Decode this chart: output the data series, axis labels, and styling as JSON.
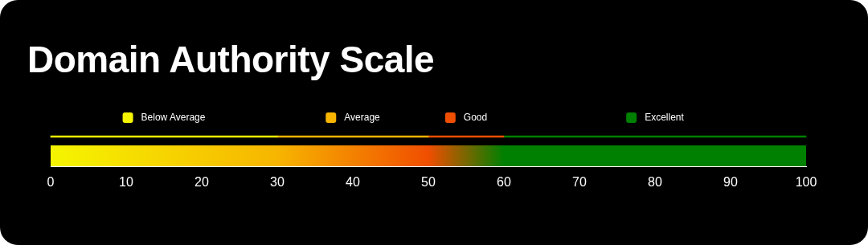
{
  "chart_data": {
    "type": "bar",
    "title": "Domain Authority Scale",
    "orientation": "horizontal",
    "stacked": true,
    "legend": "top",
    "categories": [
      null
    ],
    "series": [
      {
        "name": "Below Average",
        "color": "#f5f500",
        "values": [
          30
        ]
      },
      {
        "name": "Average",
        "color": "#f7b500",
        "values": [
          20
        ]
      },
      {
        "name": "Good",
        "color": "#f04e00",
        "values": [
          10
        ]
      },
      {
        "name": "Excellent",
        "color": "#008000",
        "values": [
          40
        ]
      }
    ],
    "xlim": [
      0,
      100
    ],
    "xticks": [
      0,
      10,
      20,
      30,
      40,
      50,
      60,
      70,
      80,
      90,
      100
    ]
  }
}
